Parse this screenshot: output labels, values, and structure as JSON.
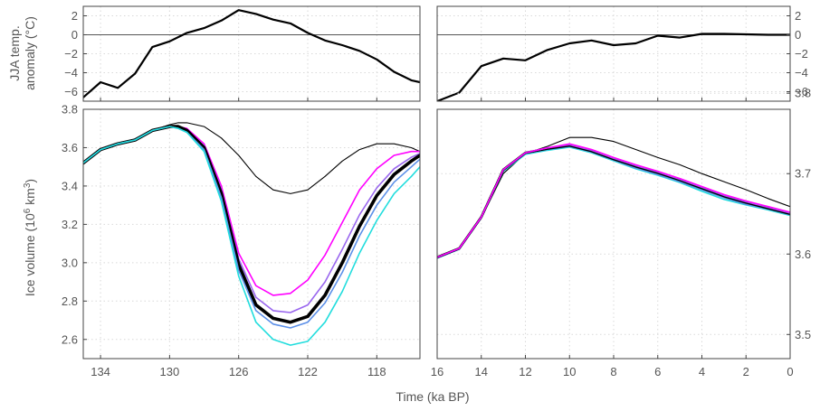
{
  "chart_data": [
    {
      "panel": "temp-lig",
      "type": "line",
      "xlim": [
        135,
        115.5
      ],
      "ylim": [
        -7,
        3
      ],
      "yticks": [
        "2",
        "0",
        "−2",
        "−4",
        "−6"
      ],
      "ylabel_lines": [
        "JJA temp.",
        "anomaly (°C)"
      ],
      "series": [
        {
          "color": "#000000",
          "x": [
            135,
            134,
            133,
            132,
            131,
            130,
            129,
            128,
            127,
            126,
            125,
            124,
            123,
            122,
            121,
            120,
            119,
            118,
            117,
            116,
            115.5
          ],
          "y": [
            -6.6,
            -5.0,
            -5.6,
            -4.1,
            -1.3,
            -0.7,
            0.2,
            0.7,
            1.5,
            2.6,
            2.2,
            1.6,
            1.2,
            0.2,
            -0.6,
            -1.1,
            -1.7,
            -2.6,
            -3.9,
            -4.8,
            -5.0
          ]
        }
      ]
    },
    {
      "panel": "temp-holo",
      "type": "line",
      "xlim": [
        16,
        0
      ],
      "ylim": [
        -7,
        3
      ],
      "yticks": [
        "2",
        "0",
        "−2",
        "−4",
        "−6"
      ],
      "series": [
        {
          "color": "#000000",
          "x": [
            16,
            15,
            14,
            13,
            12,
            11,
            10,
            9,
            8,
            7,
            6,
            5,
            4,
            3,
            2,
            1,
            0
          ],
          "y": [
            -7.0,
            -6.1,
            -3.3,
            -2.5,
            -2.7,
            -1.6,
            -0.9,
            -0.6,
            -1.1,
            -0.9,
            -0.1,
            -0.3,
            0.1,
            0.1,
            0.05,
            0.0,
            0.0
          ]
        }
      ]
    },
    {
      "panel": "ice-lig",
      "type": "line",
      "xlim": [
        135,
        115.5
      ],
      "ylim": [
        2.5,
        3.8
      ],
      "xticks": [
        "134",
        "130",
        "126",
        "122",
        "118"
      ],
      "yticks": [
        "3.8",
        "3.6",
        "3.4",
        "3.2",
        "3.0",
        "2.8",
        "2.6"
      ],
      "ylabel": "Ice volume (10",
      "ylabel_sup": "6",
      "ylabel_unit": " km",
      "ylabel_sup2": "3",
      "ylabel_close": ")",
      "series": [
        {
          "color": "#000000",
          "width": 1.1,
          "x": [
            135,
            134,
            133,
            132,
            131,
            130,
            129.5,
            129,
            128,
            127,
            126,
            125,
            124,
            123,
            122,
            121,
            120,
            119,
            118,
            117,
            116,
            115.5
          ],
          "y": [
            3.52,
            3.59,
            3.62,
            3.64,
            3.69,
            3.72,
            3.73,
            3.73,
            3.71,
            3.65,
            3.56,
            3.45,
            3.38,
            3.36,
            3.38,
            3.45,
            3.53,
            3.59,
            3.62,
            3.62,
            3.6,
            3.58
          ]
        },
        {
          "color": "#ff00ff",
          "width": 1.6,
          "x": [
            135,
            134,
            133,
            132,
            131,
            130,
            129.5,
            129,
            128,
            127,
            126,
            125,
            124,
            123,
            122,
            121,
            120,
            119,
            118,
            117,
            116,
            115.5
          ],
          "y": [
            3.52,
            3.59,
            3.62,
            3.64,
            3.69,
            3.71,
            3.71,
            3.7,
            3.62,
            3.4,
            3.05,
            2.88,
            2.83,
            2.84,
            2.91,
            3.04,
            3.21,
            3.38,
            3.49,
            3.56,
            3.58,
            3.58
          ]
        },
        {
          "color": "#9966ee",
          "width": 1.6,
          "x": [
            135,
            134,
            133,
            132,
            131,
            130,
            129.5,
            129,
            128,
            127,
            126,
            125,
            124,
            123,
            122,
            121,
            120,
            119,
            118,
            117,
            116,
            115.5
          ],
          "y": [
            3.52,
            3.59,
            3.62,
            3.64,
            3.69,
            3.71,
            3.71,
            3.69,
            3.61,
            3.38,
            3.02,
            2.82,
            2.75,
            2.74,
            2.78,
            2.9,
            3.07,
            3.25,
            3.39,
            3.49,
            3.55,
            3.57
          ]
        },
        {
          "color": "#000000",
          "width": 3.6,
          "x": [
            135,
            134,
            133,
            132,
            131,
            130,
            129.5,
            129,
            128,
            127,
            126,
            125,
            124,
            123,
            122,
            121,
            120,
            119,
            118,
            117,
            116,
            115.5
          ],
          "y": [
            3.52,
            3.59,
            3.62,
            3.64,
            3.69,
            3.71,
            3.71,
            3.69,
            3.6,
            3.36,
            2.99,
            2.78,
            2.71,
            2.69,
            2.72,
            2.83,
            3.0,
            3.19,
            3.35,
            3.46,
            3.53,
            3.56
          ]
        },
        {
          "color": "#5b8fe8",
          "width": 1.6,
          "x": [
            135,
            134,
            133,
            132,
            131,
            130,
            129.5,
            129,
            128,
            127,
            126,
            125,
            124,
            123,
            122,
            121,
            120,
            119,
            118,
            117,
            116,
            115.5
          ],
          "y": [
            3.52,
            3.59,
            3.62,
            3.64,
            3.69,
            3.71,
            3.7,
            3.68,
            3.59,
            3.34,
            2.96,
            2.75,
            2.68,
            2.66,
            2.69,
            2.79,
            2.95,
            3.14,
            3.3,
            3.42,
            3.5,
            3.54
          ]
        },
        {
          "color": "#22dddd",
          "width": 1.6,
          "x": [
            135,
            134,
            133,
            132,
            131,
            130,
            129.5,
            129,
            128,
            127,
            126,
            125,
            124,
            123,
            122,
            121,
            120,
            119,
            118,
            117,
            116,
            115.5
          ],
          "y": [
            3.52,
            3.59,
            3.62,
            3.64,
            3.69,
            3.71,
            3.7,
            3.68,
            3.58,
            3.32,
            2.93,
            2.69,
            2.6,
            2.57,
            2.59,
            2.69,
            2.85,
            3.05,
            3.22,
            3.36,
            3.45,
            3.5
          ]
        }
      ]
    },
    {
      "panel": "ice-holo",
      "type": "line",
      "xlim": [
        16,
        0
      ],
      "ylim": [
        3.47,
        3.78
      ],
      "xticks": [
        "16",
        "14",
        "12",
        "10",
        "8",
        "6",
        "4",
        "2",
        "0"
      ],
      "yticks": [
        "3.8",
        "3.7",
        "3.6",
        "3.5"
      ],
      "series": [
        {
          "color": "#000000",
          "width": 1.1,
          "x": [
            16,
            15,
            14,
            13,
            12,
            11,
            10,
            9,
            8,
            7,
            6,
            5,
            4,
            3,
            2,
            1,
            0
          ],
          "y": [
            3.596,
            3.607,
            3.645,
            3.7,
            3.725,
            3.734,
            3.745,
            3.745,
            3.74,
            3.73,
            3.72,
            3.711,
            3.7,
            3.69,
            3.68,
            3.669,
            3.659
          ]
        },
        {
          "color": "#22dddd",
          "width": 1.6,
          "x": [
            16,
            15,
            14,
            13,
            12,
            11,
            10,
            9,
            8,
            7,
            6,
            5,
            4,
            3,
            2,
            1,
            0
          ],
          "y": [
            3.595,
            3.606,
            3.645,
            3.703,
            3.724,
            3.729,
            3.733,
            3.726,
            3.716,
            3.706,
            3.698,
            3.689,
            3.678,
            3.668,
            3.661,
            3.655,
            3.648
          ]
        },
        {
          "color": "#5b8fe8",
          "width": 1.6,
          "x": [
            16,
            15,
            14,
            13,
            12,
            11,
            10,
            9,
            8,
            7,
            6,
            5,
            4,
            3,
            2,
            1,
            0
          ],
          "y": [
            3.595,
            3.606,
            3.645,
            3.704,
            3.725,
            3.73,
            3.734,
            3.727,
            3.717,
            3.707,
            3.699,
            3.69,
            3.68,
            3.67,
            3.662,
            3.656,
            3.649
          ]
        },
        {
          "color": "#000000",
          "width": 2.6,
          "x": [
            16,
            15,
            14,
            13,
            12,
            11,
            10,
            9,
            8,
            7,
            6,
            5,
            4,
            3,
            2,
            1,
            0
          ],
          "y": [
            3.596,
            3.607,
            3.646,
            3.705,
            3.726,
            3.731,
            3.735,
            3.728,
            3.718,
            3.709,
            3.701,
            3.692,
            3.682,
            3.672,
            3.664,
            3.657,
            3.65
          ]
        },
        {
          "color": "#9966ee",
          "width": 1.6,
          "x": [
            16,
            15,
            14,
            13,
            12,
            11,
            10,
            9,
            8,
            7,
            6,
            5,
            4,
            3,
            2,
            1,
            0
          ],
          "y": [
            3.596,
            3.607,
            3.646,
            3.705,
            3.726,
            3.732,
            3.736,
            3.729,
            3.719,
            3.71,
            3.702,
            3.693,
            3.683,
            3.673,
            3.665,
            3.658,
            3.651
          ]
        },
        {
          "color": "#ff00ff",
          "width": 1.6,
          "x": [
            16,
            15,
            14,
            13,
            12,
            11,
            10,
            9,
            8,
            7,
            6,
            5,
            4,
            3,
            2,
            1,
            0
          ],
          "y": [
            3.596,
            3.607,
            3.646,
            3.705,
            3.726,
            3.732,
            3.737,
            3.73,
            3.72,
            3.711,
            3.703,
            3.694,
            3.684,
            3.674,
            3.666,
            3.659,
            3.652
          ]
        }
      ]
    }
  ],
  "shared": {
    "xlabel": "Time (ka BP)",
    "grid": true,
    "tick_color": "#555555",
    "frame_color": "#444444"
  }
}
